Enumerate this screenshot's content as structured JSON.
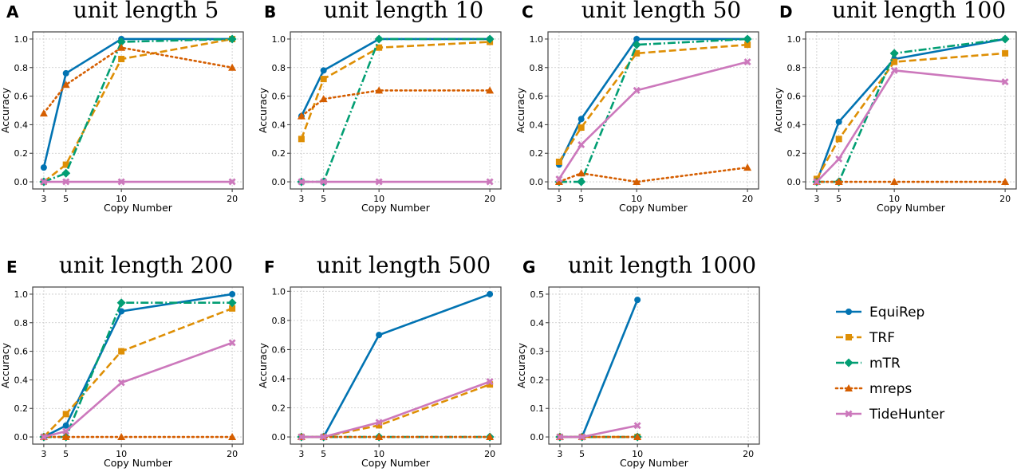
{
  "chart_data": {
    "type": "line",
    "legend": {
      "placement": "right-bottom",
      "entries": [
        "EquiRep",
        "TRF",
        "mTR",
        "mreps",
        "TideHunter"
      ]
    },
    "series_styles": {
      "EquiRep": {
        "color": "#0173b2",
        "linestyle": "solid",
        "marker": "circle"
      },
      "TRF": {
        "color": "#de8f05",
        "linestyle": "dashed",
        "marker": "square"
      },
      "mTR": {
        "color": "#029e73",
        "linestyle": "dashdot",
        "marker": "diamond"
      },
      "mreps": {
        "color": "#d55e00",
        "linestyle": "dotted",
        "marker": "triangle"
      },
      "TideHunter": {
        "color": "#cc78bc",
        "linestyle": "solid",
        "marker": "x-filled"
      }
    },
    "panels": [
      {
        "letter": "A",
        "title": "unit length 5",
        "xlabel": "Copy Number",
        "ylabel": "Accuracy",
        "x": [
          3,
          5,
          10,
          20
        ],
        "xticks": [
          "3",
          "5",
          "10",
          "20"
        ],
        "xlim": [
          2,
          21
        ],
        "ylim": [
          -0.05,
          1.05
        ],
        "yticks": [
          "0.0",
          "0.2",
          "0.4",
          "0.6",
          "0.8",
          "1.0"
        ],
        "ytick_values": [
          0,
          0.2,
          0.4,
          0.6,
          0.8,
          1.0
        ],
        "grid": true,
        "series": [
          {
            "name": "EquiRep",
            "values": [
              0.1,
              0.76,
              1.0,
              1.0
            ]
          },
          {
            "name": "TRF",
            "values": [
              0.0,
              0.12,
              0.86,
              1.0
            ]
          },
          {
            "name": "mTR",
            "values": [
              0.0,
              0.06,
              0.98,
              1.0
            ]
          },
          {
            "name": "mreps",
            "values": [
              0.48,
              0.68,
              0.94,
              0.8
            ]
          },
          {
            "name": "TideHunter",
            "values": [
              0.0,
              0.0,
              0.0,
              0.0
            ]
          }
        ]
      },
      {
        "letter": "B",
        "title": "unit length 10",
        "xlabel": "Copy Number",
        "ylabel": "Accuracy",
        "x": [
          3,
          5,
          10,
          20
        ],
        "xticks": [
          "3",
          "5",
          "10",
          "20"
        ],
        "xlim": [
          2,
          21
        ],
        "ylim": [
          -0.05,
          1.05
        ],
        "yticks": [
          "0.0",
          "0.2",
          "0.4",
          "0.6",
          "0.8",
          "1.0"
        ],
        "ytick_values": [
          0,
          0.2,
          0.4,
          0.6,
          0.8,
          1.0
        ],
        "grid": true,
        "series": [
          {
            "name": "EquiRep",
            "values": [
              0.46,
              0.78,
              1.0,
              1.0
            ]
          },
          {
            "name": "TRF",
            "values": [
              0.3,
              0.72,
              0.94,
              0.98
            ]
          },
          {
            "name": "mTR",
            "values": [
              0.0,
              0.0,
              1.0,
              1.0
            ]
          },
          {
            "name": "mreps",
            "values": [
              0.46,
              0.58,
              0.64,
              0.64
            ]
          },
          {
            "name": "TideHunter",
            "values": [
              0.0,
              0.0,
              0.0,
              0.0
            ]
          }
        ]
      },
      {
        "letter": "C",
        "title": "unit length 50",
        "xlabel": "Copy Number",
        "ylabel": "Accuracy",
        "x": [
          3,
          5,
          10,
          20
        ],
        "xticks": [
          "3",
          "5",
          "10",
          "20"
        ],
        "xlim": [
          2,
          21
        ],
        "ylim": [
          -0.05,
          1.05
        ],
        "yticks": [
          "0.0",
          "0.2",
          "0.4",
          "0.6",
          "0.8",
          "1.0"
        ],
        "ytick_values": [
          0,
          0.2,
          0.4,
          0.6,
          0.8,
          1.0
        ],
        "grid": true,
        "series": [
          {
            "name": "EquiRep",
            "values": [
              0.12,
              0.44,
              1.0,
              1.0
            ]
          },
          {
            "name": "TRF",
            "values": [
              0.14,
              0.38,
              0.9,
              0.96
            ]
          },
          {
            "name": "mTR",
            "values": [
              0.0,
              0.0,
              0.96,
              1.0
            ]
          },
          {
            "name": "mreps",
            "values": [
              0.0,
              0.06,
              0.0,
              0.1
            ]
          },
          {
            "name": "TideHunter",
            "values": [
              0.02,
              0.26,
              0.64,
              0.84
            ]
          }
        ]
      },
      {
        "letter": "D",
        "title": "unit length 100",
        "xlabel": "Copy Number",
        "ylabel": "Accuracy",
        "x": [
          3,
          5,
          10,
          20
        ],
        "xticks": [
          "3",
          "5",
          "10",
          "20"
        ],
        "xlim": [
          2,
          21
        ],
        "ylim": [
          -0.05,
          1.05
        ],
        "yticks": [
          "0.0",
          "0.2",
          "0.4",
          "0.6",
          "0.8",
          "1.0"
        ],
        "ytick_values": [
          0,
          0.2,
          0.4,
          0.6,
          0.8,
          1.0
        ],
        "grid": true,
        "series": [
          {
            "name": "EquiRep",
            "values": [
              0.0,
              0.42,
              0.86,
              1.0
            ]
          },
          {
            "name": "TRF",
            "values": [
              0.02,
              0.3,
              0.84,
              0.9
            ]
          },
          {
            "name": "mTR",
            "values": [
              0.0,
              0.0,
              0.9,
              1.0
            ]
          },
          {
            "name": "mreps",
            "values": [
              0.0,
              0.0,
              0.0,
              0.0
            ]
          },
          {
            "name": "TideHunter",
            "values": [
              0.0,
              0.16,
              0.78,
              0.7
            ]
          }
        ]
      },
      {
        "letter": "E",
        "title": "unit length 200",
        "xlabel": "Copy Number",
        "ylabel": "Accuracy",
        "x": [
          3,
          5,
          10,
          20
        ],
        "xticks": [
          "3",
          "5",
          "10",
          "20"
        ],
        "xlim": [
          2,
          21
        ],
        "ylim": [
          -0.05,
          1.05
        ],
        "yticks": [
          "0.0",
          "0.2",
          "0.4",
          "0.6",
          "0.8",
          "1.0"
        ],
        "ytick_values": [
          0,
          0.2,
          0.4,
          0.6,
          0.8,
          1.0
        ],
        "grid": true,
        "series": [
          {
            "name": "EquiRep",
            "values": [
              0.0,
              0.08,
              0.88,
              1.0
            ]
          },
          {
            "name": "TRF",
            "values": [
              0.0,
              0.16,
              0.6,
              0.9
            ]
          },
          {
            "name": "mTR",
            "values": [
              0.0,
              0.0,
              0.94,
              0.94
            ]
          },
          {
            "name": "mreps",
            "values": [
              0.0,
              0.0,
              0.0,
              0.0
            ]
          },
          {
            "name": "TideHunter",
            "values": [
              0.0,
              0.04,
              0.38,
              0.66
            ]
          }
        ]
      },
      {
        "letter": "F",
        "title": "unit length 500",
        "xlabel": "Copy Number",
        "ylabel": "Accuracy",
        "x": [
          3,
          5,
          10,
          20
        ],
        "xticks": [
          "3",
          "5",
          "10",
          "20"
        ],
        "xlim": [
          2,
          21
        ],
        "ylim": [
          -0.049,
          1.029
        ],
        "yticks": [
          "0.0",
          "0.2",
          "0.4",
          "0.6",
          "0.8",
          "1.0"
        ],
        "ytick_values": [
          0,
          0.2,
          0.4,
          0.6,
          0.8,
          1.0
        ],
        "grid": true,
        "series": [
          {
            "name": "EquiRep",
            "values": [
              0.0,
              0.0,
              0.7,
              0.98
            ]
          },
          {
            "name": "TRF",
            "values": [
              0.0,
              0.0,
              0.08,
              0.36
            ]
          },
          {
            "name": "mTR",
            "values": [
              0.0,
              0.0,
              0.0,
              0.0
            ]
          },
          {
            "name": "mreps",
            "values": [
              0.0,
              0.0,
              0.0,
              0.0
            ]
          },
          {
            "name": "TideHunter",
            "values": [
              0.0,
              0.0,
              0.1,
              0.38
            ]
          }
        ]
      },
      {
        "letter": "G",
        "title": "unit length 1000",
        "xlabel": "Copy Number",
        "ylabel": "Accuracy",
        "x": [
          3,
          5,
          10
        ],
        "xticks": [
          "3",
          "5",
          "10",
          "20"
        ],
        "xtick_values": [
          3,
          5,
          10,
          20
        ],
        "xlim": [
          2,
          21
        ],
        "ylim": [
          -0.025,
          0.525
        ],
        "yticks": [
          "0.0",
          "0.1",
          "0.2",
          "0.3",
          "0.4",
          "0.5"
        ],
        "ytick_values": [
          0,
          0.1,
          0.2,
          0.3,
          0.4,
          0.5
        ],
        "grid": true,
        "series": [
          {
            "name": "EquiRep",
            "values": [
              0.0,
              0.0,
              0.48
            ]
          },
          {
            "name": "TRF",
            "values": [
              0.0,
              0.0,
              0.0
            ]
          },
          {
            "name": "mTR",
            "values": [
              0.0,
              0.0,
              0.0
            ]
          },
          {
            "name": "mreps",
            "values": [
              0.0,
              0.0,
              0.0
            ]
          },
          {
            "name": "TideHunter",
            "values": [
              0.0,
              0.0,
              0.04
            ]
          }
        ]
      }
    ]
  }
}
